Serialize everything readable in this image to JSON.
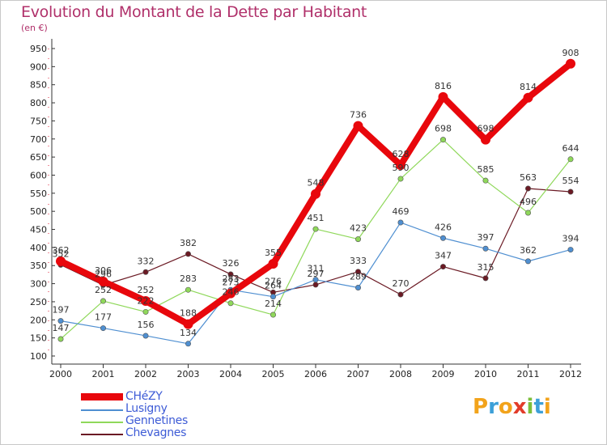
{
  "title": "Evolution du Montant de la Dette par Habitant",
  "subtitle": "(en €)",
  "logo": {
    "letters": [
      "P",
      "r",
      "o",
      "x",
      "i",
      "t",
      "i"
    ],
    "colors": [
      "#f2a31b",
      "#3da0d8",
      "#f2a31b",
      "#e23c2a",
      "#7cbf3b",
      "#3da0d8",
      "#f2a31b"
    ]
  },
  "chart_data": {
    "type": "line",
    "title": "Evolution du Montant de la Dette par Habitant",
    "subtitle": "(en €)",
    "xlabel": "",
    "ylabel": "",
    "x": [
      "2000",
      "2001",
      "2002",
      "2003",
      "2004",
      "2005",
      "2006",
      "2007",
      "2008",
      "2009",
      "2010",
      "2011",
      "2012"
    ],
    "ylim": [
      100,
      950
    ],
    "yticks": [
      100,
      150,
      200,
      250,
      300,
      350,
      400,
      450,
      500,
      550,
      600,
      650,
      700,
      750,
      800,
      850,
      900,
      950
    ],
    "grid": false,
    "legend_position": "bottom-left",
    "series": [
      {
        "name": "CHéZY",
        "color": "#e8070c",
        "values": [
          362,
          306,
          252,
          188,
          273,
          355,
          548,
          736,
          628,
          816,
          698,
          814,
          908
        ]
      },
      {
        "name": "Lusigny",
        "color": "#4f8fd1",
        "values": [
          197,
          177,
          156,
          134,
          283,
          264,
          311,
          289,
          469,
          426,
          397,
          362,
          394
        ]
      },
      {
        "name": "Gennetines",
        "color": "#8fd85a",
        "values": [
          147,
          252,
          222,
          283,
          246,
          214,
          451,
          423,
          590,
          698,
          585,
          496,
          644
        ]
      },
      {
        "name": "Chevagnes",
        "color": "#6b1a24",
        "values": [
          352,
          296,
          332,
          382,
          326,
          276,
          297,
          333,
          270,
          347,
          315,
          563,
          554
        ]
      }
    ]
  }
}
